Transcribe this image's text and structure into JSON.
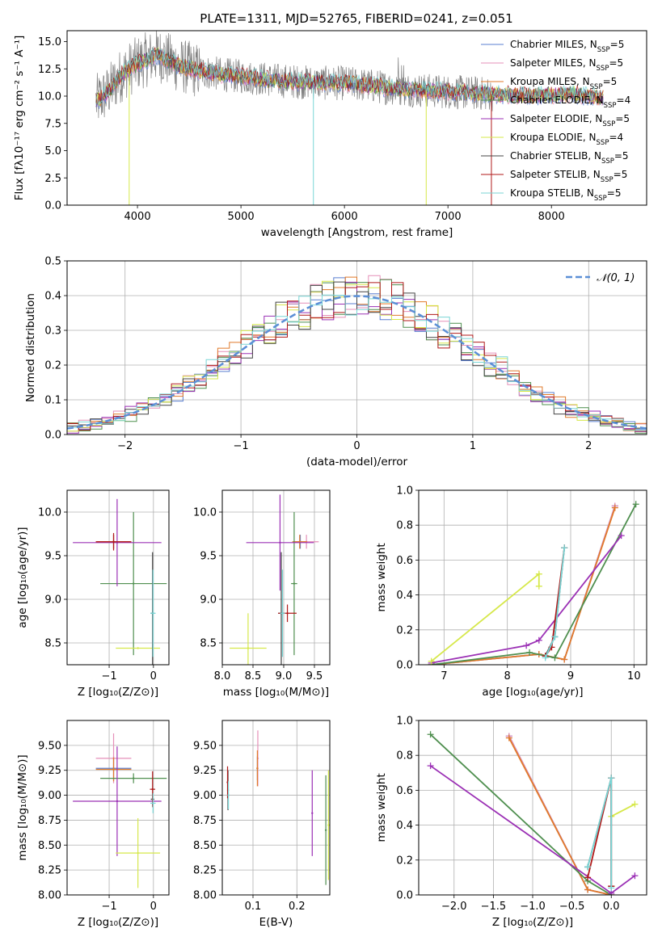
{
  "colors": {
    "Chabrier MILES": "#5a7fd0",
    "Salpeter MILES": "#e58fb8",
    "Kroupa MILES": "#e07a2a",
    "Chabrier ELODIE": "#4f8f4f",
    "Salpeter ELODIE": "#9b30b5",
    "Kroupa ELODIE": "#d6e84a",
    "Chabrier STELIB": "#444444",
    "Salpeter STELIB": "#b01a1a",
    "Kroupa STELIB": "#79d6d6",
    "data": "#808080",
    "gaussian": "#5b8fd6",
    "grid": "#b0b0b0"
  },
  "chart_data": [
    {
      "id": "spectrum",
      "type": "line",
      "title": "PLATE=1311, MJD=52765, FIBERID=0241, z=0.051",
      "xlabel": "wavelength [Angstrom, rest frame]",
      "ylabel": "Flux [fλ10⁻¹⁷ erg cm⁻² s⁻¹ A⁻¹]",
      "xlim": [
        3320,
        8920
      ],
      "ylim": [
        0,
        16
      ],
      "xticks": [
        4000,
        5000,
        6000,
        7000,
        8000
      ],
      "yticks": [
        0.0,
        2.5,
        5.0,
        7.5,
        10.0,
        12.5,
        15.0
      ],
      "grid": false,
      "legend_position": "top-right",
      "legend": [
        {
          "model": "Chabrier MILES",
          "label": "Chabrier MILES, N",
          "sub": "SSP",
          "tail": "=5"
        },
        {
          "model": "Salpeter MILES",
          "label": "Salpeter MILES, N",
          "sub": "SSP",
          "tail": "=5"
        },
        {
          "model": "Kroupa MILES",
          "label": "Kroupa MILES, N",
          "sub": "SSP",
          "tail": "=5"
        },
        {
          "model": "Chabrier ELODIE",
          "label": "Chabrier ELODIE, N",
          "sub": "SSP",
          "tail": "=4"
        },
        {
          "model": "Salpeter ELODIE",
          "label": "Salpeter ELODIE, N",
          "sub": "SSP",
          "tail": "=5"
        },
        {
          "model": "Kroupa ELODIE",
          "label": "Kroupa ELODIE, N",
          "sub": "SSP",
          "tail": "=4"
        },
        {
          "model": "Chabrier STELIB",
          "label": "Chabrier STELIB, N",
          "sub": "SSP",
          "tail": "=5"
        },
        {
          "model": "Salpeter STELIB",
          "label": "Salpeter STELIB, N",
          "sub": "SSP",
          "tail": "=5"
        },
        {
          "model": "Kroupa STELIB",
          "label": "Kroupa STELIB, N",
          "sub": "SSP",
          "tail": "=5"
        }
      ],
      "continuum": [
        [
          3600,
          9.5
        ],
        [
          3700,
          10.2
        ],
        [
          3850,
          12.0
        ],
        [
          4000,
          13.0
        ],
        [
          4200,
          13.8
        ],
        [
          4400,
          12.8
        ],
        [
          4600,
          12.3
        ],
        [
          4800,
          12.0
        ],
        [
          5000,
          11.8
        ],
        [
          5200,
          11.6
        ],
        [
          5400,
          11.4
        ],
        [
          5600,
          11.3
        ],
        [
          5800,
          11.2
        ],
        [
          6000,
          11.2
        ],
        [
          6200,
          11.0
        ],
        [
          6400,
          10.8
        ],
        [
          6600,
          10.6
        ],
        [
          6800,
          10.5
        ],
        [
          7000,
          10.4
        ],
        [
          7200,
          10.3
        ],
        [
          7400,
          10.2
        ],
        [
          7600,
          10.1
        ],
        [
          7800,
          10.0
        ],
        [
          8000,
          10.1
        ],
        [
          8200,
          10.2
        ],
        [
          8400,
          10.0
        ],
        [
          8500,
          9.8
        ]
      ],
      "dips": [
        {
          "x": 3920,
          "model": "Kroupa ELODIE"
        },
        {
          "x": 5700,
          "model": "Kroupa STELIB"
        },
        {
          "x": 6790,
          "model": "Kroupa ELODIE"
        },
        {
          "x": 7420,
          "model": "Salpeter STELIB"
        }
      ]
    },
    {
      "id": "residuals",
      "type": "step",
      "xlabel": "(data-model)/error",
      "ylabel": "Normed distribution",
      "xlim": [
        -2.5,
        2.5
      ],
      "ylim": [
        0,
        0.5
      ],
      "xticks": [
        -2,
        -1,
        0,
        1,
        2
      ],
      "yticks": [
        0.0,
        0.1,
        0.2,
        0.3,
        0.4,
        0.5
      ],
      "grid": true,
      "legend_position": "top-right",
      "gaussian_label": "𝒩(0, 1)",
      "bin_width": 0.1
    },
    {
      "id": "age-vs-Z",
      "type": "errorbar",
      "xlabel": "Z [log₁₀(Z/Z⊙)]",
      "ylabel": "age  [log₁₀(age/yr)]",
      "xlim": [
        -1.95,
        0.35
      ],
      "ylim": [
        8.25,
        10.25
      ],
      "xticks": [
        -1,
        0
      ],
      "yticks": [
        8.5,
        9.0,
        9.5,
        10.0
      ],
      "grid": true,
      "points": [
        {
          "model": "Chabrier MILES",
          "x": -0.9,
          "xerr": 0.4,
          "y": 9.66,
          "yerr": 0.08
        },
        {
          "model": "Salpeter MILES",
          "x": -0.9,
          "xerr": 0.4,
          "y": 9.66,
          "yerr": 0.08
        },
        {
          "model": "Kroupa MILES",
          "x": -0.9,
          "xerr": 0.4,
          "y": 9.66,
          "yerr": 0.08
        },
        {
          "model": "Chabrier ELODIE",
          "x": -0.45,
          "xerr": 0.75,
          "y": 9.18,
          "yerr": 0.82
        },
        {
          "model": "Salpeter ELODIE",
          "x": -0.82,
          "xerr": 1.0,
          "y": 9.65,
          "yerr": 0.5
        },
        {
          "model": "Kroupa ELODIE",
          "x": -0.35,
          "xerr": 0.5,
          "y": 8.44,
          "yerr": 0.01
        },
        {
          "model": "Chabrier STELIB",
          "x": -0.02,
          "xerr": 0.04,
          "y": 8.84,
          "yerr": 0.7
        },
        {
          "model": "Salpeter STELIB",
          "x": -0.9,
          "xerr": 0.4,
          "y": 9.66,
          "yerr": 0.1
        },
        {
          "model": "Kroupa STELIB",
          "x": -0.01,
          "xerr": 0.06,
          "y": 8.84,
          "yerr": 0.5
        }
      ]
    },
    {
      "id": "age-vs-mass",
      "type": "errorbar",
      "xlabel": "mass [log₁₀(M/M⊙)]",
      "ylabel": "",
      "xlim": [
        8.0,
        9.75
      ],
      "ylim": [
        8.25,
        10.25
      ],
      "xticks": [
        8.0,
        8.5,
        9.0,
        9.5
      ],
      "yticks": [
        8.5,
        9.0,
        9.5,
        10.0
      ],
      "grid": true,
      "points": [
        {
          "model": "Chabrier MILES",
          "x": 9.27,
          "xerr": 0.12,
          "y": 9.66,
          "yerr": 0.08
        },
        {
          "model": "Salpeter MILES",
          "x": 9.37,
          "xerr": 0.2,
          "y": 9.66,
          "yerr": 0.08
        },
        {
          "model": "Kroupa MILES",
          "x": 9.26,
          "xerr": 0.12,
          "y": 9.66,
          "yerr": 0.08
        },
        {
          "model": "Chabrier ELODIE",
          "x": 9.17,
          "xerr": 0.05,
          "y": 9.18,
          "yerr": 0.82
        },
        {
          "model": "Salpeter ELODIE",
          "x": 8.94,
          "xerr": 0.55,
          "y": 9.65,
          "yerr": 0.55
        },
        {
          "model": "Kroupa ELODIE",
          "x": 8.42,
          "xerr": 0.3,
          "y": 8.44,
          "yerr": 0.4
        },
        {
          "model": "Chabrier STELIB",
          "x": 8.96,
          "xerr": 0.05,
          "y": 8.84,
          "yerr": 0.7
        },
        {
          "model": "Salpeter STELIB",
          "x": 9.06,
          "xerr": 0.15,
          "y": 8.84,
          "yerr": 0.1
        },
        {
          "model": "Kroupa STELIB",
          "x": 8.98,
          "xerr": 0.04,
          "y": 8.84,
          "yerr": 0.5
        }
      ]
    },
    {
      "id": "weight-vs-age",
      "type": "line",
      "xlabel": "age  [log₁₀(age/yr)]",
      "ylabel": "mass weight",
      "xlim": [
        6.6,
        10.2
      ],
      "ylim": [
        0,
        1.0
      ],
      "xticks": [
        7,
        8,
        9,
        10
      ],
      "yticks": [
        0.0,
        0.2,
        0.4,
        0.6,
        0.8,
        1.0
      ],
      "grid": true,
      "series": [
        {
          "model": "Chabrier MILES",
          "x": [
            6.8,
            8.5,
            8.9,
            9.7
          ],
          "y": [
            0.0,
            0.06,
            0.03,
            0.91
          ]
        },
        {
          "model": "Salpeter MILES",
          "x": [
            6.8,
            8.5,
            8.9,
            9.7
          ],
          "y": [
            0.0,
            0.06,
            0.03,
            0.91
          ]
        },
        {
          "model": "Kroupa MILES",
          "x": [
            6.8,
            8.5,
            8.9,
            9.7
          ],
          "y": [
            0.0,
            0.06,
            0.03,
            0.9
          ]
        },
        {
          "model": "Chabrier ELODIE",
          "x": [
            6.8,
            8.35,
            8.75,
            10.03
          ],
          "y": [
            0.0,
            0.07,
            0.04,
            0.92
          ]
        },
        {
          "model": "Salpeter ELODIE",
          "x": [
            6.8,
            8.3,
            8.5,
            9.8
          ],
          "y": [
            0.01,
            0.11,
            0.14,
            0.74
          ]
        },
        {
          "model": "Kroupa ELODIE",
          "x": [
            6.8,
            8.5,
            8.5
          ],
          "y": [
            0.02,
            0.52,
            0.45
          ]
        },
        {
          "model": "Chabrier STELIB",
          "x": [
            8.6,
            8.75,
            8.9
          ],
          "y": [
            0.05,
            0.16,
            0.67
          ]
        },
        {
          "model": "Salpeter STELIB",
          "x": [
            8.6,
            8.7,
            8.9
          ],
          "y": [
            0.05,
            0.1,
            0.67
          ]
        },
        {
          "model": "Kroupa STELIB",
          "x": [
            8.6,
            8.75,
            8.9
          ],
          "y": [
            0.04,
            0.16,
            0.67
          ]
        }
      ]
    },
    {
      "id": "mass-vs-Z",
      "type": "errorbar",
      "xlabel": "Z [log₁₀(Z/Z⊙)]",
      "ylabel": "mass [log₁₀(M/M⊙)]",
      "xlim": [
        -1.95,
        0.35
      ],
      "ylim": [
        8.0,
        9.75
      ],
      "xticks": [
        -1,
        0
      ],
      "yticks": [
        8.0,
        8.25,
        8.5,
        8.75,
        9.0,
        9.25,
        9.5
      ],
      "grid": true,
      "points": [
        {
          "model": "Chabrier MILES",
          "x": -0.9,
          "xerr": 0.4,
          "y": 9.27,
          "yerr": 0.12
        },
        {
          "model": "Salpeter MILES",
          "x": -0.9,
          "xerr": 0.4,
          "y": 9.37,
          "yerr": 0.25
        },
        {
          "model": "Kroupa MILES",
          "x": -0.9,
          "xerr": 0.4,
          "y": 9.26,
          "yerr": 0.12
        },
        {
          "model": "Chabrier ELODIE",
          "x": -0.45,
          "xerr": 0.75,
          "y": 9.17,
          "yerr": 0.05
        },
        {
          "model": "Salpeter ELODIE",
          "x": -0.82,
          "xerr": 1.0,
          "y": 8.94,
          "yerr": 0.55
        },
        {
          "model": "Kroupa ELODIE",
          "x": -0.35,
          "xerr": 0.5,
          "y": 8.42,
          "yerr": 0.35
        },
        {
          "model": "Chabrier STELIB",
          "x": -0.02,
          "xerr": 0.04,
          "y": 8.96,
          "yerr": 0.06
        },
        {
          "model": "Salpeter STELIB",
          "x": -0.02,
          "xerr": 0.06,
          "y": 9.06,
          "yerr": 0.18
        },
        {
          "model": "Kroupa STELIB",
          "x": -0.01,
          "xerr": 0.06,
          "y": 8.92,
          "yerr": 0.1
        }
      ]
    },
    {
      "id": "mass-vs-EBV",
      "type": "errorbar",
      "xlabel": "E(B-V)",
      "ylabel": "",
      "xlim": [
        0.03,
        0.275
      ],
      "ylim": [
        8.0,
        9.75
      ],
      "xticks": [
        0.1,
        0.2
      ],
      "yticks": [
        8.0,
        8.25,
        8.5,
        8.75,
        9.0,
        9.25,
        9.5
      ],
      "grid": true,
      "points": [
        {
          "model": "Chabrier MILES",
          "x": 0.11,
          "xerr": 0,
          "y": 9.27,
          "yerr": 0.12
        },
        {
          "model": "Salpeter MILES",
          "x": 0.111,
          "xerr": 0,
          "y": 9.37,
          "yerr": 0.28
        },
        {
          "model": "Kroupa MILES",
          "x": 0.11,
          "xerr": 0,
          "y": 9.27,
          "yerr": 0.18
        },
        {
          "model": "Chabrier ELODIE",
          "x": 0.266,
          "xerr": 0,
          "y": 8.65,
          "yerr": 0.55
        },
        {
          "model": "Salpeter ELODIE",
          "x": 0.235,
          "xerr": 0,
          "y": 8.82,
          "yerr": 0.43
        },
        {
          "model": "Kroupa ELODIE",
          "x": 0.272,
          "xerr": 0,
          "y": 8.7,
          "yerr": 0.55
        },
        {
          "model": "Chabrier STELIB",
          "x": 0.043,
          "xerr": 0,
          "y": 9.05,
          "yerr": 0.2
        },
        {
          "model": "Salpeter STELIB",
          "x": 0.042,
          "xerr": 0,
          "y": 9.13,
          "yerr": 0.16
        },
        {
          "model": "Kroupa STELIB",
          "x": 0.044,
          "xerr": 0,
          "y": 9.0,
          "yerr": 0.14
        }
      ]
    },
    {
      "id": "weight-vs-Z",
      "type": "line",
      "xlabel": "Z [log₁₀(Z/Z⊙)]",
      "ylabel": "mass weight",
      "xlim": [
        -2.45,
        0.45
      ],
      "ylim": [
        0,
        1.0
      ],
      "xticks": [
        -2.0,
        -1.5,
        -1.0,
        -0.5,
        0.0
      ],
      "yticks": [
        0.0,
        0.2,
        0.4,
        0.6,
        0.8,
        1.0
      ],
      "grid": true,
      "series": [
        {
          "model": "Chabrier MILES",
          "x": [
            -1.3,
            -0.3,
            0.0
          ],
          "y": [
            0.91,
            0.03,
            0.0
          ]
        },
        {
          "model": "Salpeter MILES",
          "x": [
            -1.3,
            -0.3,
            0.0
          ],
          "y": [
            0.91,
            0.03,
            0.0
          ]
        },
        {
          "model": "Kroupa MILES",
          "x": [
            -1.3,
            -0.3,
            0.0
          ],
          "y": [
            0.9,
            0.03,
            0.0
          ]
        },
        {
          "model": "Chabrier ELODIE",
          "x": [
            -2.3,
            -0.3,
            0.0
          ],
          "y": [
            0.92,
            0.08,
            0.0
          ]
        },
        {
          "model": "Salpeter ELODIE",
          "x": [
            -2.3,
            0.0,
            0.3
          ],
          "y": [
            0.74,
            0.01,
            0.11
          ]
        },
        {
          "model": "Kroupa ELODIE",
          "x": [
            0.0,
            0.3
          ],
          "y": [
            0.45,
            0.52
          ]
        },
        {
          "model": "Chabrier STELIB",
          "x": [
            -0.3,
            0.0,
            0.0
          ],
          "y": [
            0.16,
            0.67,
            0.05
          ]
        },
        {
          "model": "Salpeter STELIB",
          "x": [
            -0.3,
            0.0,
            0.0
          ],
          "y": [
            0.1,
            0.67,
            0.05
          ]
        },
        {
          "model": "Kroupa STELIB",
          "x": [
            -0.3,
            0.0,
            0.0
          ],
          "y": [
            0.16,
            0.67,
            0.04
          ]
        }
      ]
    }
  ]
}
